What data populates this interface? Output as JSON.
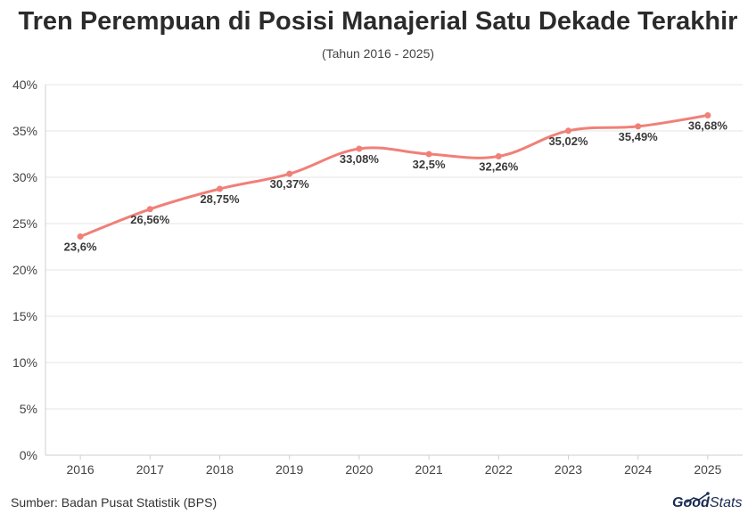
{
  "chart_data": {
    "type": "line",
    "title": "Tren Perempuan di Posisi Manajerial Satu Dekade Terakhir",
    "subtitle": "(Tahun 2016 - 2025)",
    "categories": [
      "2016",
      "2017",
      "2018",
      "2019",
      "2020",
      "2021",
      "2022",
      "2023",
      "2024",
      "2025"
    ],
    "series": [
      {
        "values": [
          23.6,
          26.56,
          28.75,
          30.37,
          33.08,
          32.5,
          32.26,
          35.02,
          35.49,
          36.68
        ],
        "labels": [
          "23,6%",
          "26,56%",
          "28,75%",
          "30,37%",
          "33,08%",
          "32,5%",
          "32,26%",
          "35,02%",
          "35,49%",
          "36,68%"
        ],
        "color": "#f08078"
      }
    ],
    "y_ticks": [
      "0%",
      "5%",
      "10%",
      "15%",
      "20%",
      "25%",
      "30%",
      "35%",
      "40%"
    ],
    "ylim": [
      0,
      40
    ],
    "grid": true
  },
  "footer": {
    "source": "Sumber: Badan Pusat Statistik (BPS)",
    "logo_good": "Good",
    "logo_stats": "Stats"
  }
}
